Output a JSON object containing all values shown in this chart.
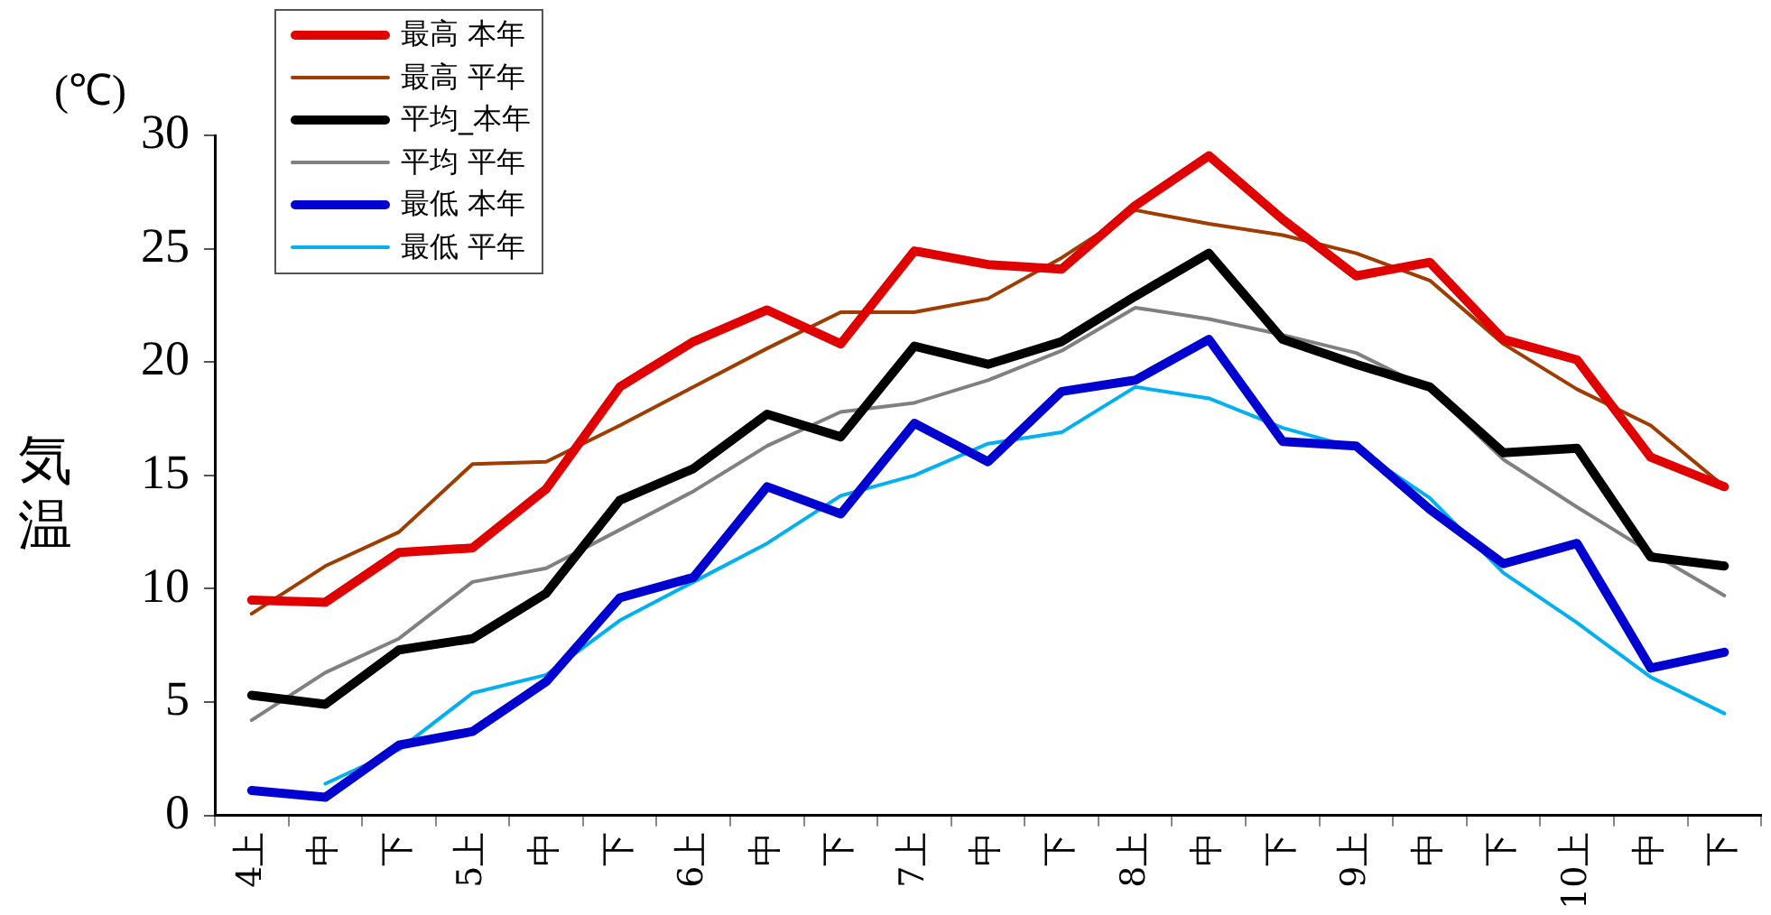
{
  "chart_data": {
    "type": "line",
    "ylabel": "気温",
    "annotations": [
      "(℃)"
    ],
    "categories": [
      "4上",
      "中",
      "下",
      "5上",
      "中",
      "下",
      "6上",
      "中",
      "下",
      "7上",
      "中",
      "下",
      "8上",
      "中",
      "下",
      "9上",
      "中",
      "下",
      "10上",
      "中",
      "下"
    ],
    "ylim": [
      0,
      30
    ],
    "yticks": [
      0,
      5,
      10,
      15,
      20,
      25,
      30
    ],
    "grid": false,
    "legend": "top left",
    "marker": "none",
    "line_style": "solid",
    "series": [
      {
        "name": "最高 本年",
        "color": "#e00000",
        "values": [
          9.5,
          9.4,
          11.6,
          11.8,
          14.4,
          18.9,
          20.9,
          22.3,
          20.8,
          24.9,
          24.3,
          24.1,
          26.9,
          29.1,
          26.3,
          23.8,
          24.4,
          21.0,
          20.1,
          15.8,
          14.5
        ]
      },
      {
        "name": "最高 平年",
        "color": "#a03c00",
        "values": [
          8.9,
          11.0,
          12.5,
          15.5,
          15.6,
          17.2,
          18.9,
          20.6,
          22.2,
          22.2,
          22.8,
          24.6,
          26.7,
          26.1,
          25.6,
          24.8,
          23.6,
          20.8,
          18.8,
          17.2,
          14.5
        ]
      },
      {
        "name": "平均_本年",
        "color": "#000000",
        "values": [
          5.3,
          4.9,
          7.3,
          7.8,
          9.8,
          13.9,
          15.3,
          17.7,
          16.7,
          20.7,
          19.9,
          20.9,
          22.9,
          24.8,
          21.0,
          19.9,
          18.9,
          16.0,
          16.2,
          11.4,
          11.0
        ]
      },
      {
        "name": "平均 平年",
        "color": "#808080",
        "values": [
          4.2,
          6.3,
          7.8,
          10.3,
          10.9,
          12.6,
          14.3,
          16.3,
          17.8,
          18.2,
          19.2,
          20.5,
          22.4,
          21.9,
          21.2,
          20.4,
          18.8,
          15.7,
          13.6,
          11.6,
          9.7
        ]
      },
      {
        "name": "最低 本年",
        "color": "#0000d0",
        "values": [
          1.1,
          0.8,
          3.1,
          3.7,
          5.9,
          9.6,
          10.5,
          14.5,
          13.3,
          17.3,
          15.6,
          18.7,
          19.2,
          21.0,
          16.5,
          16.3,
          13.5,
          11.1,
          12.0,
          6.5,
          7.2
        ]
      },
      {
        "name": "最低 平年",
        "color": "#00b0f0",
        "values": [
          null,
          1.4,
          2.9,
          5.4,
          6.2,
          8.6,
          10.3,
          12.0,
          14.1,
          15.0,
          16.4,
          16.9,
          18.9,
          18.4,
          17.1,
          16.2,
          14.0,
          10.7,
          8.5,
          6.1,
          4.5
        ]
      }
    ]
  }
}
